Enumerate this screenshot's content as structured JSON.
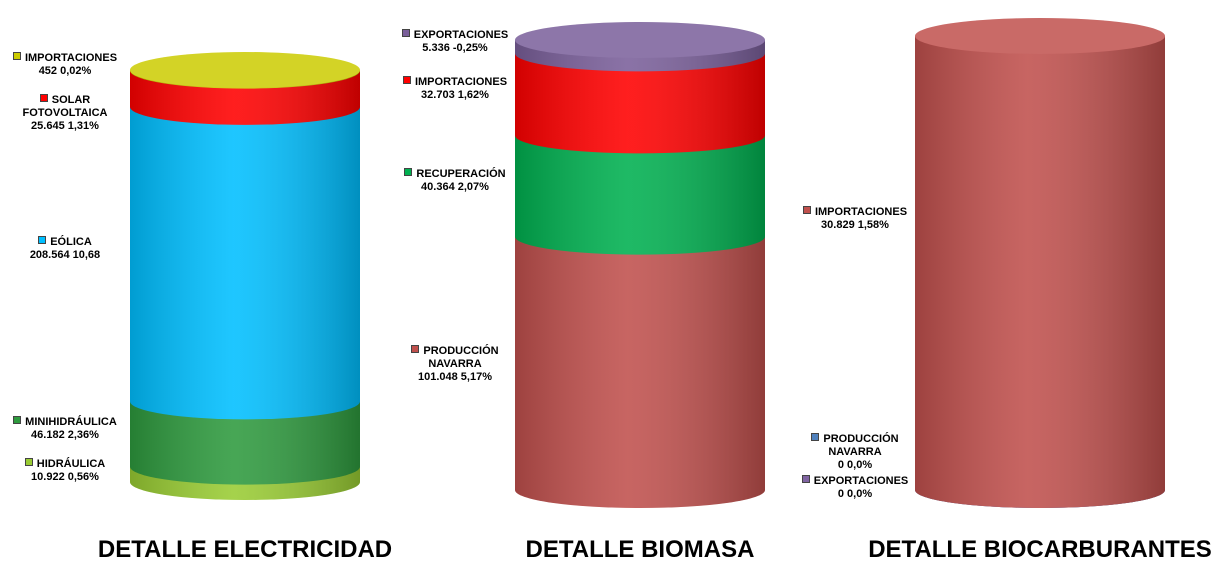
{
  "chart_data": [
    {
      "type": "cylinder",
      "title": "DETALLE ELECTRICIDAD",
      "series": [
        {
          "name": "HIDRÁULICA",
          "color": "#99cc33",
          "values": [
            10922
          ],
          "value_labels": [
            "10.922  0,56%"
          ]
        },
        {
          "name": "MINIHIDRÁULICA",
          "color": "#2e9a3e",
          "values": [
            46182
          ],
          "value_labels": [
            "46.182  2,36%"
          ]
        },
        {
          "name": "EÓLICA",
          "color": "#00bfff",
          "values": [
            208564
          ],
          "value_labels": [
            "208.564  10,68"
          ]
        },
        {
          "name": "SOLAR FOTOVOLTAICA",
          "color": "#ff0000",
          "values": [
            25645
          ],
          "value_labels": [
            "25.645  1,31%"
          ]
        },
        {
          "name": "IMPORTACIONES",
          "color": "#cccc00",
          "values": [
            452
          ],
          "value_labels": [
            "452  0,02%"
          ]
        }
      ]
    },
    {
      "type": "cylinder",
      "title": "DETALLE BIOMASA",
      "series": [
        {
          "name": "PRODUCCIÓN NAVARRA",
          "color": "#c0504d",
          "values": [
            101048
          ],
          "value_labels": [
            "101.048  5,17%"
          ]
        },
        {
          "name": "RECUPERACIÓN",
          "color": "#00b050",
          "values": [
            40364
          ],
          "value_labels": [
            "40.364  2,07%"
          ]
        },
        {
          "name": "IMPORTACIONES",
          "color": "#ff0000",
          "values": [
            32703
          ],
          "value_labels": [
            "32.703  1,62%"
          ]
        },
        {
          "name": "EXPORTACIONES",
          "color": "#7a5f9a",
          "values": [
            5336
          ],
          "value_labels": [
            "5.336  -0,25%"
          ]
        }
      ]
    },
    {
      "type": "cylinder",
      "title": "DETALLE BIOCARBURANTES",
      "series": [
        {
          "name": "EXPORTACIONES",
          "color": "#8064a2",
          "values": [
            0
          ],
          "value_labels": [
            "0  0,0%"
          ]
        },
        {
          "name": "PRODUCCIÓN NAVARRA",
          "color": "#4f81bd",
          "values": [
            0
          ],
          "value_labels": [
            "0  0,0%"
          ]
        },
        {
          "name": "IMPORTACIONES",
          "color": "#c0504d",
          "values": [
            30829
          ],
          "value_labels": [
            "30.829  1,58%"
          ]
        }
      ]
    }
  ]
}
